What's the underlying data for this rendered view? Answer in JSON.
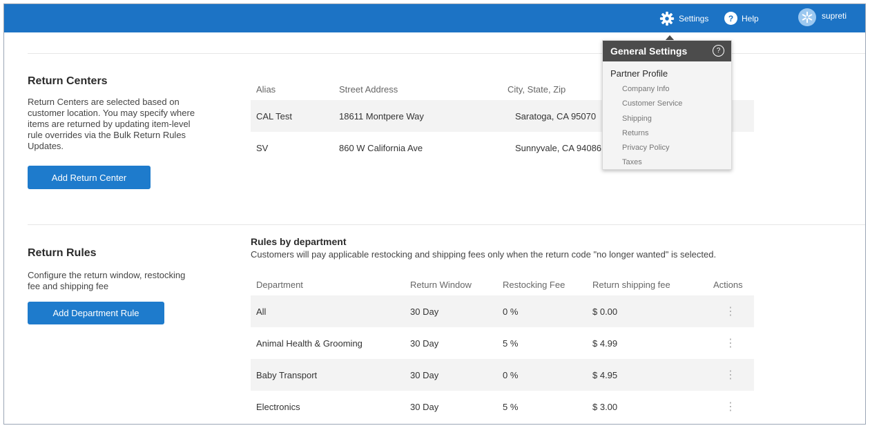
{
  "topbar": {
    "settings_label": "Settings",
    "help_label": "Help",
    "user_label": "supreti",
    "help_glyph": "?",
    "bg_color": "#1c73c5"
  },
  "dropdown": {
    "title": "General Settings",
    "help_glyph": "?",
    "section": "Partner Profile",
    "items": [
      "Company Info",
      "Customer Service",
      "Shipping",
      "Returns",
      "Privacy Policy",
      "Taxes"
    ]
  },
  "return_centers": {
    "title": "Return Centers",
    "description": "Return Centers are selected based on customer location. You may specify where items are returned by updating item-level rule overrides via the Bulk Return Rules Updates.",
    "button": "Add Return Center",
    "columns": [
      "Alias",
      "Street Address",
      "City, State, Zip"
    ],
    "rows": [
      {
        "alias": "CAL Test",
        "street": "18611 Montpere Way",
        "city": "Saratoga, CA 95070"
      },
      {
        "alias": "SV",
        "street": "860 W California Ave",
        "city": "Sunnyvale, CA 94086"
      }
    ]
  },
  "return_rules": {
    "title": "Return Rules",
    "description": "Configure the return window, restocking fee and shipping fee",
    "button": "Add Department Rule",
    "table_title": "Rules by department",
    "table_subtitle": "Customers will pay applicable restocking and shipping fees only when the return code \"no longer wanted\" is selected.",
    "columns": [
      "Department",
      "Return Window",
      "Restocking Fee",
      "Return shipping fee",
      "Actions"
    ],
    "rows": [
      {
        "department": "All",
        "window": "30 Day",
        "restocking": "0 %",
        "shipping": "$ 0.00",
        "action": "⋮"
      },
      {
        "department": "Animal Health & Grooming",
        "window": "30 Day",
        "restocking": "5 %",
        "shipping": "$ 4.99",
        "action": "⋮"
      },
      {
        "department": "Baby Transport",
        "window": "30 Day",
        "restocking": "0 %",
        "shipping": "$ 4.95",
        "action": "⋮"
      },
      {
        "department": "Electronics",
        "window": "30 Day",
        "restocking": "5 %",
        "shipping": "$ 3.00",
        "action": "⋮"
      }
    ]
  },
  "icons": {
    "settings": "gear-icon",
    "help": "help-icon",
    "user": "avatar-spark-icon"
  }
}
